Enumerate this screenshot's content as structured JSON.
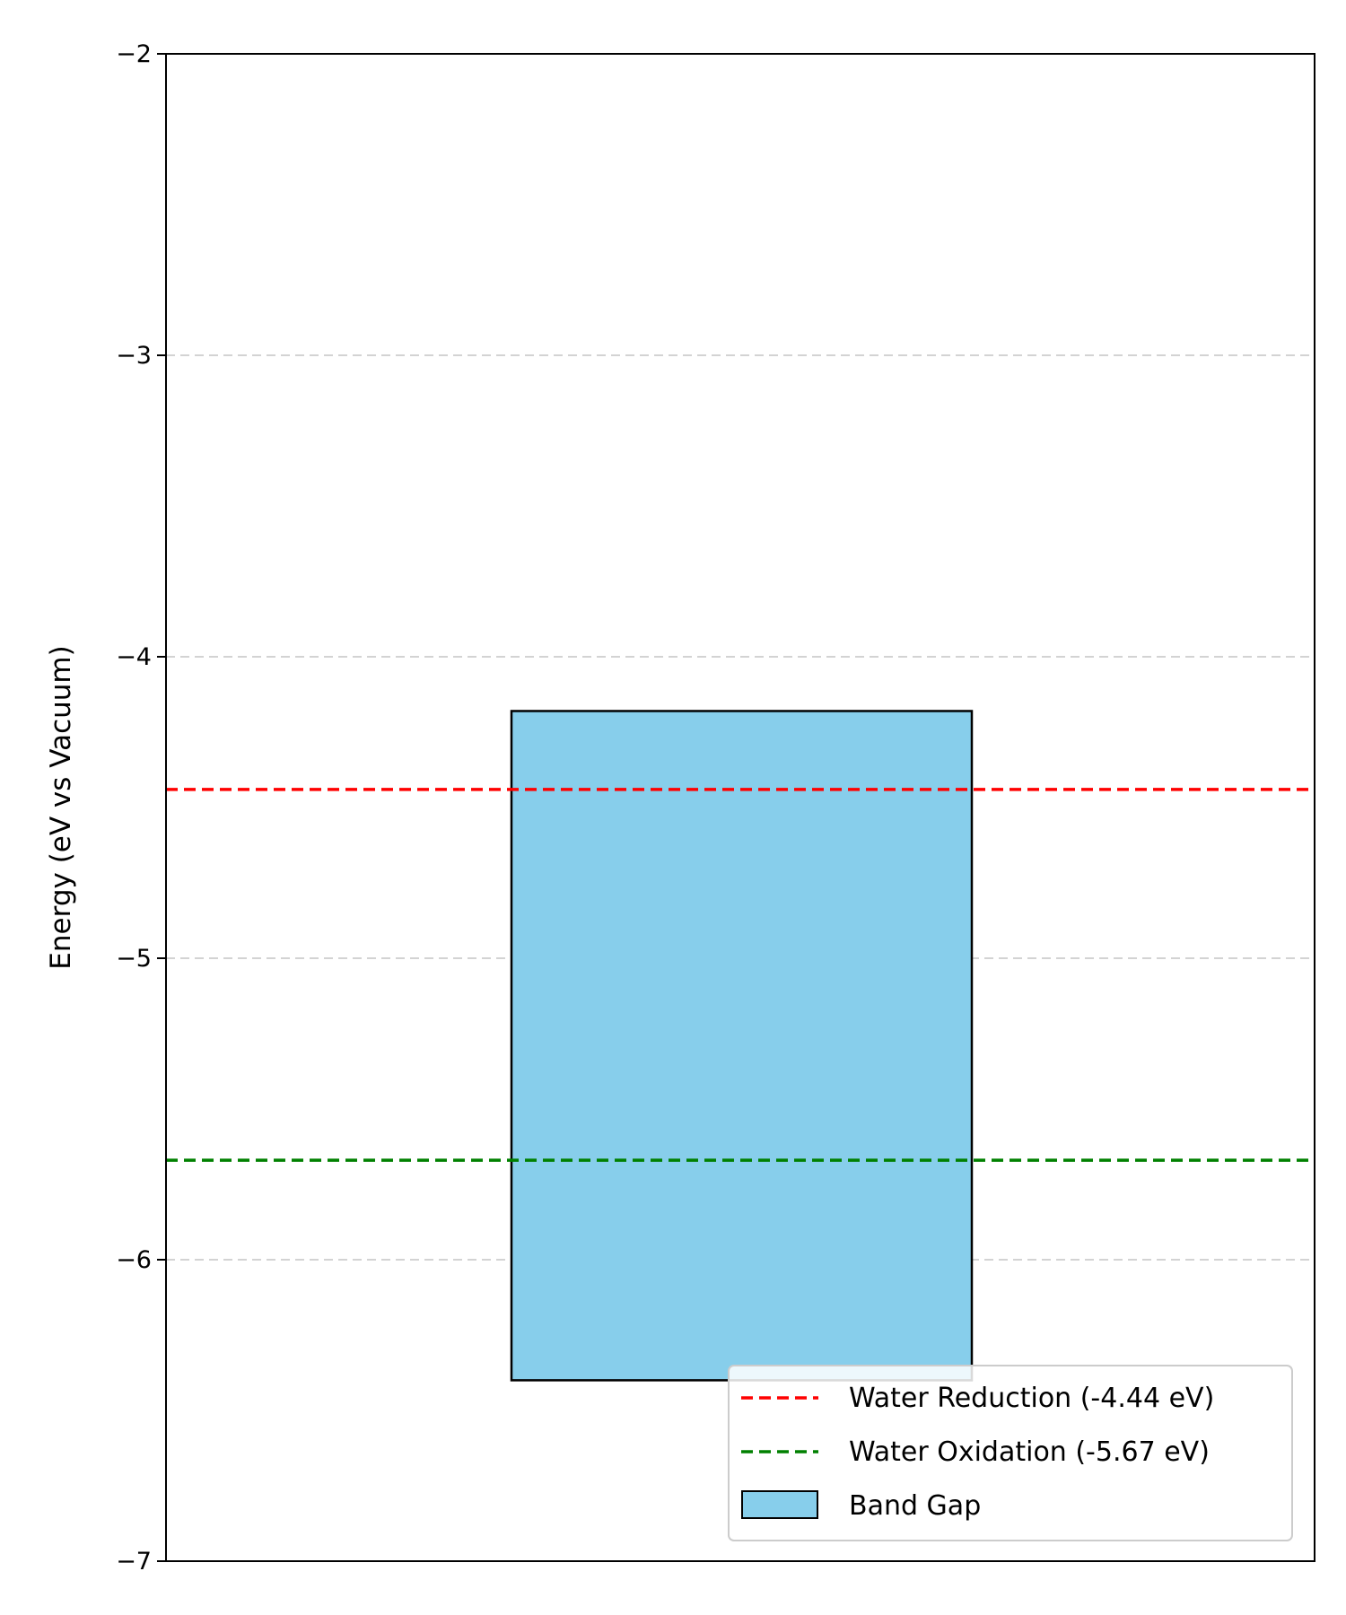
{
  "chart_data": {
    "type": "bar",
    "ylabel": "Energy (eV vs Vacuum)",
    "ylim": [
      -7,
      -2
    ],
    "yticks": [
      -7,
      -6,
      -5,
      -4,
      -3,
      -2
    ],
    "ytick_labels": [
      "−7",
      "−6",
      "−5",
      "−4",
      "−3",
      "−2"
    ],
    "grid": {
      "axis": "y",
      "style": "dashed",
      "color": "#d3d3d3"
    },
    "band_gap": {
      "name": "Band Gap",
      "top": -4.18,
      "bottom": -6.4,
      "color": "#87ceeb",
      "edgecolor": "#000000"
    },
    "reference_lines": [
      {
        "name": "Water Reduction (-4.44 eV)",
        "value": -4.44,
        "color": "#ff0000",
        "style": "dashed"
      },
      {
        "name": "Water Oxidation (-5.67 eV)",
        "value": -5.67,
        "color": "#008000",
        "style": "dashed"
      }
    ],
    "legend": {
      "placement": "lower-right",
      "entries": [
        "Water Reduction (-4.44 eV)",
        "Water Oxidation (-5.67 eV)",
        "Band Gap"
      ]
    }
  }
}
